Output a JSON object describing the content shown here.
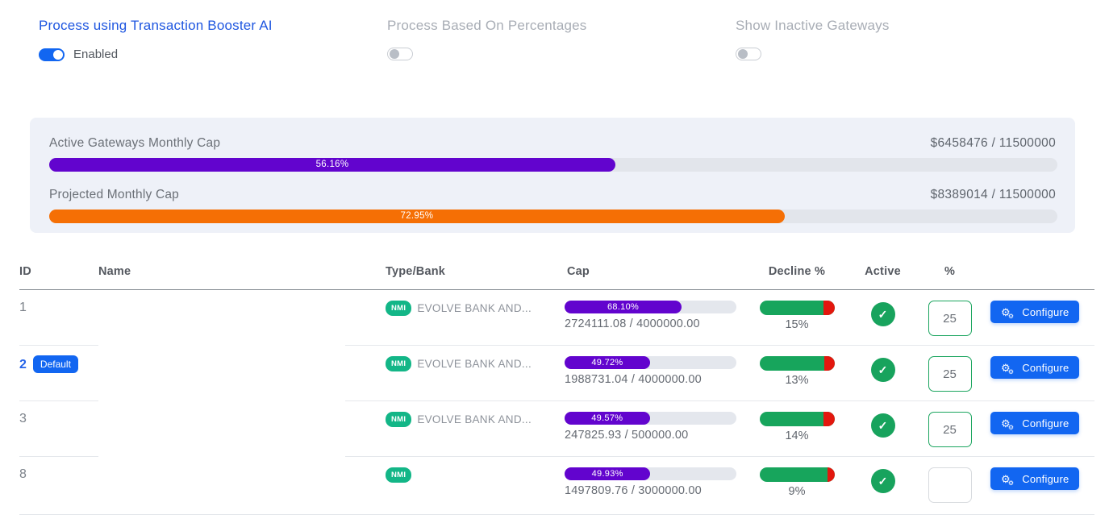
{
  "colors": {
    "primary_blue": "#1266f1",
    "title_blue": "#1e56e0",
    "purple_bar": "#6204ce",
    "orange_bar": "#f56f05",
    "nmi_teal": "#13b687",
    "success_green": "#18a35d",
    "decline_green": "#17a55c",
    "decline_red": "#e3170e",
    "card_bg": "#eef1f8"
  },
  "toggles": [
    {
      "label": "Process using Transaction Booster AI",
      "state_label": "Enabled",
      "enabled": true
    },
    {
      "label": "Process Based On Percentages",
      "state_label": "",
      "enabled": false
    },
    {
      "label": "Show Inactive Gateways",
      "state_label": "",
      "enabled": false
    }
  ],
  "caps_card": {
    "rows": [
      {
        "label": "Active Gateways Monthly Cap",
        "value": "$6458476 / 11500000",
        "percent": 56.16,
        "percent_label": "56.16%",
        "color": "#6204ce"
      },
      {
        "label": "Projected Monthly Cap",
        "value": "$8389014 / 11500000",
        "percent": 72.95,
        "percent_label": "72.95%",
        "color": "#f56f05"
      }
    ]
  },
  "table": {
    "headers": {
      "id": "ID",
      "name": "Name",
      "type_bank": "Type/Bank",
      "cap": "Cap",
      "decline": "Decline %",
      "active": "Active",
      "percent": "%"
    },
    "rows": [
      {
        "id": "1",
        "badge": "",
        "name": "",
        "type": "NMI",
        "bank": "EVOLVE BANK AND...",
        "cap_percent": 68.1,
        "cap_percent_label": "68.10%",
        "cap_usage": "2724111.08 / 4000000.00",
        "decline_percent": 15,
        "decline_label": "15%",
        "active": true,
        "percent_value": "25",
        "configure_label": "Configure"
      },
      {
        "id": "2",
        "badge": "Default",
        "name": "",
        "type": "NMI",
        "bank": "EVOLVE BANK AND...",
        "cap_percent": 49.72,
        "cap_percent_label": "49.72%",
        "cap_usage": "1988731.04 / 4000000.00",
        "decline_percent": 13,
        "decline_label": "13%",
        "active": true,
        "percent_value": "25",
        "configure_label": "Configure"
      },
      {
        "id": "3",
        "badge": "",
        "name": "",
        "type": "NMI",
        "bank": "EVOLVE BANK AND...",
        "cap_percent": 49.57,
        "cap_percent_label": "49.57%",
        "cap_usage": "247825.93 / 500000.00",
        "decline_percent": 14,
        "decline_label": "14%",
        "active": true,
        "percent_value": "25",
        "configure_label": "Configure"
      },
      {
        "id": "8",
        "badge": "",
        "name": "",
        "type": "NMI",
        "bank": "",
        "cap_percent": 49.93,
        "cap_percent_label": "49.93%",
        "cap_usage": "1497809.76 / 3000000.00",
        "decline_percent": 9,
        "decline_label": "9%",
        "active": true,
        "percent_value": "",
        "configure_label": "Configure"
      }
    ]
  }
}
